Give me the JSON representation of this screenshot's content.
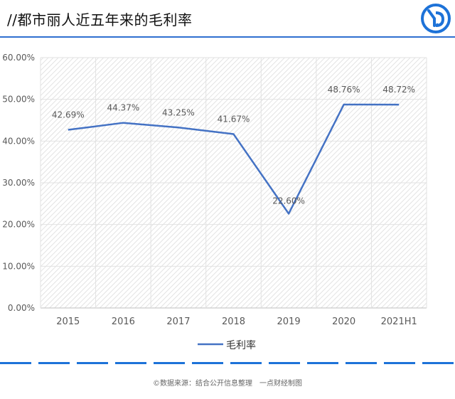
{
  "header": {
    "title": "//都市丽人近五年来的毛利率"
  },
  "logo": {
    "icon": "yd-logo-icon",
    "color": "#1d72d8"
  },
  "chart_data": {
    "type": "line",
    "title": "",
    "xlabel": "",
    "ylabel": "",
    "categories": [
      "2015",
      "2016",
      "2017",
      "2018",
      "2019",
      "2020",
      "2021H1"
    ],
    "series": [
      {
        "name": "毛利率",
        "values": [
          42.69,
          44.37,
          43.25,
          41.67,
          22.6,
          48.76,
          48.72
        ],
        "labels": [
          "42.69%",
          "44.37%",
          "43.25%",
          "41.67%",
          "22.60%",
          "48.76%",
          "48.72%"
        ],
        "color": "#4472c4"
      }
    ],
    "ylim": [
      0,
      60
    ],
    "yticks": [
      "0.00%",
      "10.00%",
      "20.00%",
      "30.00%",
      "40.00%",
      "50.00%",
      "60.00%"
    ],
    "grid": true,
    "legend_position": "bottom"
  },
  "footer": {
    "source": "©数据来源：结合公开信息整理　一点财经制图",
    "accent_color": "#1d72d8"
  }
}
